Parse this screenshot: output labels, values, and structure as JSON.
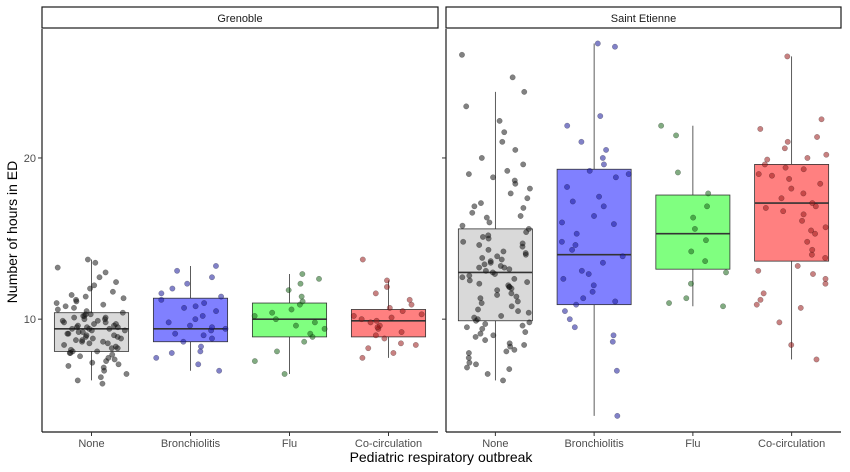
{
  "chart_data": {
    "type": "box",
    "xlabel": "Pediatric respiratory outbreak",
    "ylabel": "Number of hours in ED",
    "ylim": [
      3.0,
      28.0
    ],
    "yticks": [
      10,
      20
    ],
    "categories": [
      "None",
      "Bronchiolitis",
      "Flu",
      "Co-circulation"
    ],
    "colors": {
      "None": "#d9d9d9",
      "Bronchiolitis": "#8080ff",
      "Flu": "#80ff80",
      "Co-circulation": "#ff8080"
    },
    "point_colors": {
      "None": "#1a1a1a",
      "Bronchiolitis": "#1a1a99",
      "Flu": "#1a661a",
      "Co-circulation": "#991a1a"
    },
    "panels": [
      {
        "name": "Grenoble",
        "boxes": [
          {
            "category": "None",
            "min": 6.2,
            "q1": 8.0,
            "median": 9.4,
            "q3": 10.4,
            "max": 13.7
          },
          {
            "category": "Bronchiolitis",
            "min": 6.8,
            "q1": 8.6,
            "median": 9.4,
            "q3": 11.3,
            "max": 13.3
          },
          {
            "category": "Flu",
            "min": 6.6,
            "q1": 8.9,
            "median": 10.0,
            "q3": 11.0,
            "max": 12.8
          },
          {
            "category": "Co-circulation",
            "min": 7.6,
            "q1": 8.9,
            "median": 9.9,
            "q3": 10.6,
            "max": 12.4
          }
        ],
        "points": {
          "None": [
            6.0,
            6.2,
            6.4,
            6.6,
            6.8,
            7.0,
            7.1,
            7.2,
            7.4,
            7.5,
            7.6,
            7.7,
            7.8,
            7.9,
            8.0,
            8.0,
            8.1,
            8.2,
            8.2,
            8.3,
            8.4,
            8.5,
            8.5,
            8.6,
            8.7,
            8.7,
            8.8,
            8.9,
            8.9,
            9.0,
            9.0,
            9.1,
            9.1,
            9.2,
            9.2,
            9.3,
            9.3,
            9.4,
            9.4,
            9.4,
            9.5,
            9.5,
            9.6,
            9.6,
            9.7,
            9.7,
            9.8,
            9.8,
            9.9,
            9.9,
            10.0,
            10.0,
            10.1,
            10.1,
            10.2,
            10.2,
            10.3,
            10.4,
            10.5,
            10.6,
            10.7,
            10.8,
            10.9,
            11.0,
            11.1,
            11.2,
            11.4,
            11.5,
            11.7,
            11.9,
            12.1,
            12.3,
            12.6,
            12.9,
            13.2,
            13.5,
            13.7,
            7.3,
            8.6,
            9.5,
            10.3,
            11.3,
            7.9,
            8.8
          ],
          "Bronchiolitis": [
            6.8,
            7.2,
            7.6,
            8.0,
            8.3,
            8.6,
            8.8,
            9.0,
            9.1,
            9.3,
            9.4,
            9.6,
            9.8,
            10.0,
            10.2,
            10.5,
            10.8,
            11.0,
            11.2,
            11.4,
            11.6,
            11.9,
            12.2,
            12.6,
            13.0,
            13.3,
            7.9,
            9.5,
            10.7
          ],
          "Flu": [
            6.6,
            7.4,
            8.0,
            8.6,
            8.9,
            9.1,
            9.4,
            9.6,
            9.8,
            10.0,
            10.2,
            10.4,
            10.6,
            10.9,
            11.1,
            11.4,
            11.8,
            12.2,
            12.5,
            12.8
          ],
          "Co-circulation": [
            7.6,
            7.9,
            8.2,
            8.5,
            8.8,
            9.0,
            9.2,
            9.4,
            9.6,
            9.8,
            9.9,
            10.0,
            10.1,
            10.3,
            10.5,
            10.7,
            10.9,
            11.2,
            11.6,
            12.0,
            12.4,
            13.7,
            8.4,
            9.5,
            10.2
          ]
        }
      },
      {
        "name": "Saint Etienne",
        "boxes": [
          {
            "category": "None",
            "min": 6.2,
            "q1": 9.9,
            "median": 12.9,
            "q3": 15.6,
            "max": 24.1
          },
          {
            "category": "Bronchiolitis",
            "min": 4.0,
            "q1": 10.9,
            "median": 14.0,
            "q3": 19.3,
            "max": 27.1
          },
          {
            "category": "Flu",
            "min": 10.8,
            "q1": 13.1,
            "median": 15.3,
            "q3": 17.7,
            "max": 22.0
          },
          {
            "category": "Co-circulation",
            "min": 7.5,
            "q1": 13.6,
            "median": 17.2,
            "q3": 19.6,
            "max": 26.3
          }
        ],
        "points": {
          "None": [
            6.2,
            6.6,
            7.0,
            7.3,
            7.6,
            7.9,
            8.1,
            8.3,
            8.5,
            8.7,
            8.9,
            9.0,
            9.2,
            9.4,
            9.5,
            9.6,
            9.7,
            9.8,
            9.9,
            10.0,
            10.2,
            10.4,
            10.6,
            10.8,
            11.0,
            11.1,
            11.3,
            11.5,
            11.6,
            11.8,
            12.0,
            12.1,
            12.2,
            12.4,
            12.5,
            12.6,
            12.7,
            12.8,
            12.9,
            13.0,
            13.1,
            13.2,
            13.3,
            13.4,
            13.5,
            13.6,
            13.7,
            13.8,
            14.0,
            14.1,
            14.2,
            14.3,
            14.5,
            14.6,
            14.8,
            15.0,
            15.2,
            15.4,
            15.6,
            15.8,
            16.0,
            16.3,
            16.6,
            16.9,
            17.2,
            17.5,
            17.8,
            18.1,
            18.4,
            18.8,
            19.2,
            19.6,
            20.0,
            20.5,
            21.0,
            21.6,
            22.3,
            23.2,
            24.1,
            25.0,
            26.4,
            8.0,
            9.1,
            10.5,
            11.9,
            12.3,
            13.9,
            14.7,
            17.0,
            19.0,
            7.2,
            8.4,
            11.4,
            13.2,
            15.1,
            16.4,
            18.6,
            6.9,
            12.0,
            10.1
          ],
          "Bronchiolitis": [
            4.0,
            6.8,
            8.6,
            9.5,
            10.0,
            10.5,
            10.9,
            11.3,
            11.7,
            12.1,
            12.5,
            13.0,
            13.5,
            13.9,
            14.3,
            14.8,
            15.3,
            15.9,
            16.4,
            17.0,
            17.6,
            18.2,
            18.8,
            19.2,
            19.6,
            20.0,
            21.0,
            22.0,
            22.6,
            27.1,
            9.0,
            12.8,
            16.0,
            19.0,
            26.9,
            11.1,
            14.6,
            17.3,
            20.5
          ],
          "Flu": [
            10.8,
            11.3,
            12.2,
            12.9,
            13.6,
            14.2,
            14.9,
            15.6,
            16.3,
            17.0,
            17.8,
            19.1,
            21.4,
            22.0,
            11.0
          ],
          "Co-circulation": [
            7.5,
            8.4,
            9.8,
            10.9,
            11.6,
            12.2,
            12.8,
            13.3,
            13.8,
            14.3,
            14.8,
            15.3,
            15.7,
            16.1,
            16.5,
            16.9,
            17.2,
            17.5,
            17.8,
            18.1,
            18.4,
            18.7,
            19.0,
            19.3,
            19.6,
            19.9,
            20.2,
            20.6,
            21.0,
            21.8,
            22.4,
            26.3,
            10.7,
            12.5,
            14.0,
            15.5,
            16.7,
            18.9,
            20.0,
            11.2,
            13.0,
            17.0,
            19.4,
            21.3
          ]
        }
      }
    ]
  }
}
